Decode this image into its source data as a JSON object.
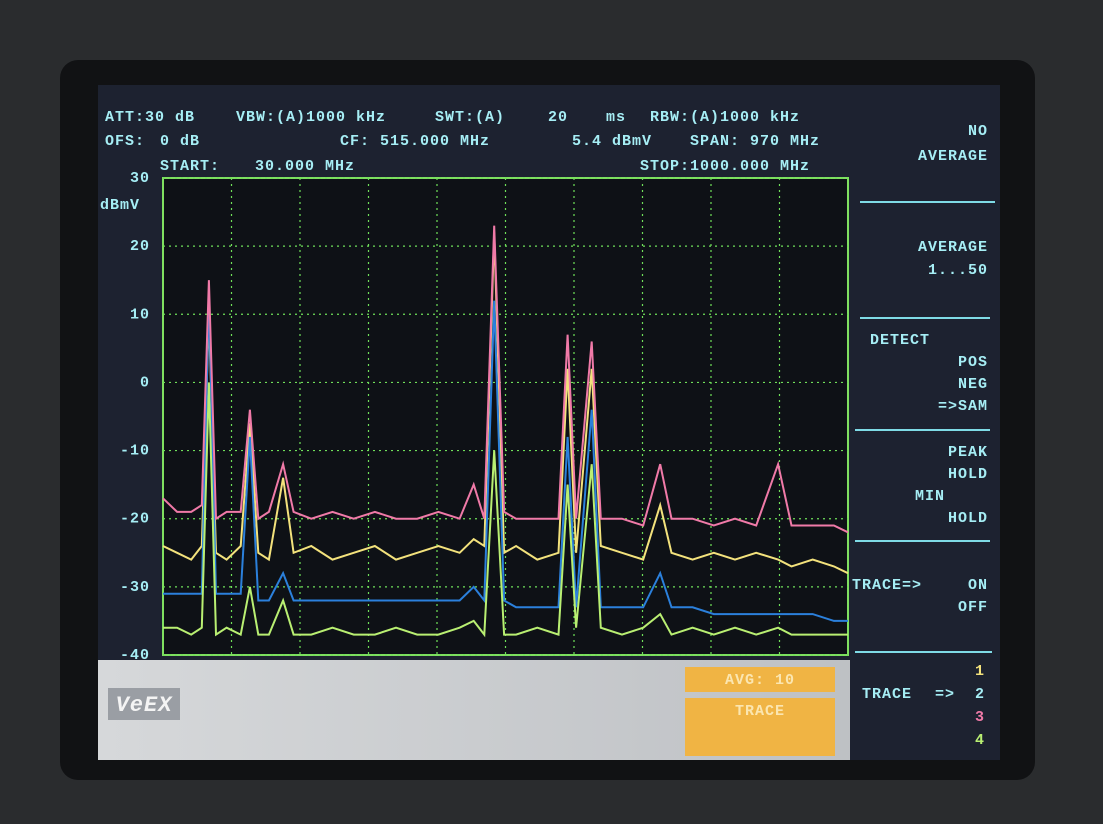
{
  "header": {
    "att": "ATT:30 dB",
    "vbw": "VBW:(A)1000 kHz",
    "swt": "SWT:(A)",
    "swt_value": "20",
    "swt_unit": "ms",
    "rbw": "RBW:(A)1000 kHz",
    "ofs": "OFS:",
    "ofs_value": "0 dB",
    "cf": "CF: 515.000 MHz",
    "marker_level": "5.4 dBmV",
    "span": "SPAN: 970 MHz",
    "start": "START:",
    "start_value": "30.000 MHz",
    "stop": "STOP:1000.000 MHz"
  },
  "softkeys": {
    "no": "NO",
    "no_average": "AVERAGE",
    "average": "AVERAGE",
    "average_range": "1...50",
    "detect": "DETECT",
    "pos": "POS",
    "neg": "NEG",
    "sam": "=>SAM",
    "peak": "PEAK",
    "peak_hold": "HOLD",
    "min": "MIN",
    "min_hold": "HOLD",
    "trace": "TRACE=>",
    "on": "ON",
    "off": "OFF"
  },
  "status": {
    "avg": "AVG: 10",
    "trace_box": "TRACE",
    "trace_label": "TRACE",
    "trace_arrow": "=>",
    "logo": "VeEX"
  },
  "chart_data": {
    "type": "line",
    "y_label": "dBmV",
    "xlim": [
      30,
      1000
    ],
    "ylim": [
      -40,
      30
    ],
    "yticks": [
      30,
      20,
      10,
      0,
      -10,
      -20,
      -30,
      -40
    ],
    "grid": true,
    "x": [
      30,
      50,
      70,
      85,
      95,
      105,
      120,
      140,
      153,
      165,
      180,
      200,
      215,
      240,
      270,
      300,
      330,
      360,
      390,
      420,
      450,
      470,
      485,
      499,
      513,
      530,
      560,
      590,
      603,
      615,
      637,
      650,
      680,
      710,
      734,
      750,
      780,
      810,
      840,
      870,
      901,
      920,
      950,
      980,
      1000
    ],
    "series": [
      {
        "name": "1",
        "color": "#f3e27c",
        "values": [
          -24,
          -25,
          -26,
          -24,
          10,
          -25,
          -26,
          -24,
          -6,
          -25,
          -26,
          -14,
          -25,
          -24,
          -26,
          -25,
          -24,
          -26,
          -25,
          -24,
          -25,
          -23,
          -24,
          22,
          -25,
          -24,
          -26,
          -25,
          2,
          -25,
          2,
          -24,
          -25,
          -26,
          -18,
          -25,
          -26,
          -25,
          -26,
          -25,
          -26,
          -27,
          -26,
          -27,
          -28
        ]
      },
      {
        "name": "2",
        "color": "#2b80dc",
        "values": [
          -31,
          -31,
          -31,
          -31,
          13,
          -31,
          -31,
          -31,
          -8,
          -32,
          -32,
          -28,
          -32,
          -32,
          -32,
          -32,
          -32,
          -32,
          -32,
          -32,
          -32,
          -30,
          -32,
          12,
          -32,
          -33,
          -33,
          -33,
          -8,
          -33,
          -4,
          -33,
          -33,
          -33,
          -28,
          -33,
          -33,
          -34,
          -34,
          -34,
          -34,
          -34,
          -34,
          -35,
          -35
        ]
      },
      {
        "name": "3",
        "color": "#f07aa8",
        "values": [
          -17,
          -19,
          -19,
          -18,
          15,
          -20,
          -19,
          -19,
          -4,
          -20,
          -19,
          -12,
          -19,
          -20,
          -19,
          -20,
          -19,
          -20,
          -20,
          -19,
          -20,
          -15,
          -20,
          23,
          -19,
          -20,
          -20,
          -20,
          7,
          -20,
          6,
          -20,
          -20,
          -21,
          -12,
          -20,
          -20,
          -21,
          -20,
          -21,
          -12,
          -21,
          -21,
          -21,
          -22
        ]
      },
      {
        "name": "4",
        "color": "#b9ef72",
        "values": [
          -36,
          -36,
          -37,
          -36,
          0,
          -37,
          -36,
          -37,
          -30,
          -37,
          -37,
          -32,
          -37,
          -37,
          -36,
          -37,
          -37,
          -36,
          -37,
          -37,
          -36,
          -35,
          -37,
          -10,
          -37,
          -37,
          -36,
          -37,
          -15,
          -36,
          -12,
          -36,
          -37,
          -36,
          -34,
          -37,
          -36,
          -37,
          -36,
          -37,
          -36,
          -37,
          -37,
          -37,
          -37
        ]
      }
    ]
  }
}
